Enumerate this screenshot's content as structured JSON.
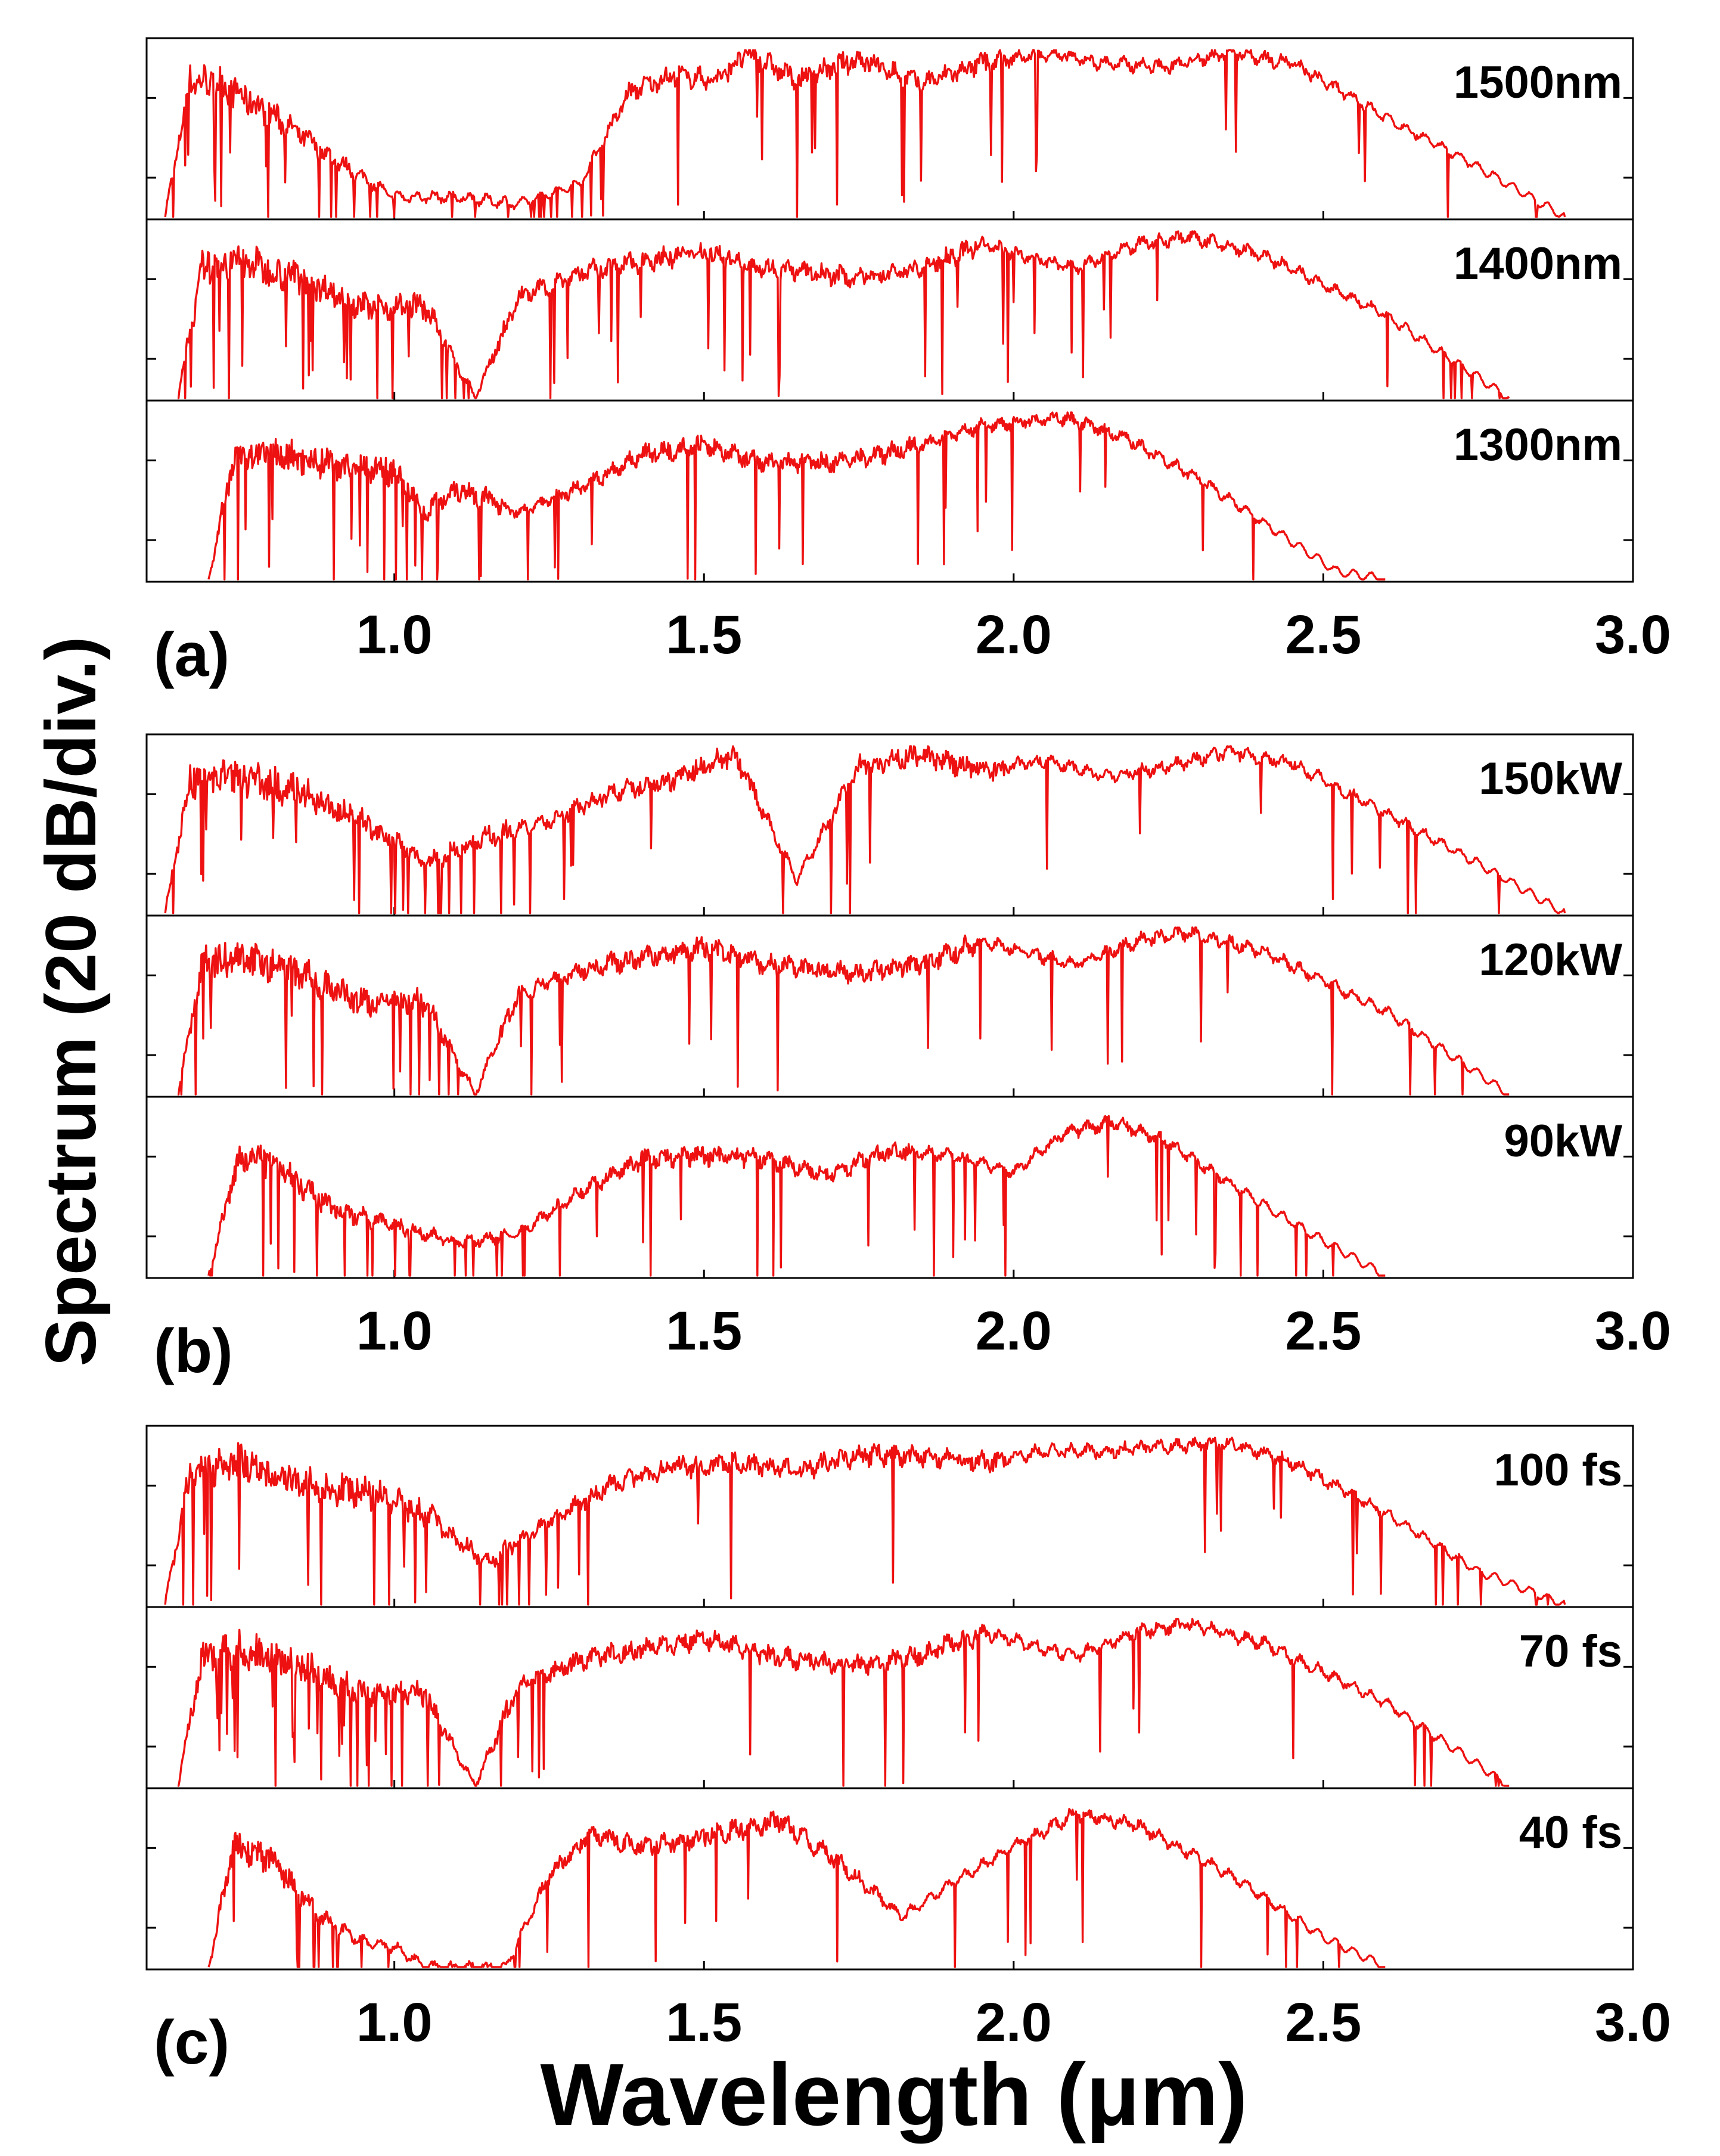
{
  "colors": {
    "trace": "#ee1111",
    "axis": "#000000",
    "background": "#ffffff"
  },
  "chart_data": {
    "type": "line",
    "xlabel": "Wavelength (μm)",
    "ylabel": "Spectrum (20 dB/div.)",
    "x_ticks": [
      "1.0",
      "1.5",
      "2.0",
      "2.5",
      "3.0"
    ],
    "xlim": [
      0.6,
      3.0
    ],
    "y_scale": "log (20 dB/div.)",
    "groups": [
      {
        "letter": "(a)",
        "panels": [
          {
            "label": "1500nm",
            "range": [
              0.63,
              2.89
            ],
            "anchors": [
              [
                0.63,
                0.0
              ],
              [
                0.67,
                0.82
              ],
              [
                0.72,
                0.8
              ],
              [
                0.8,
                0.62
              ],
              [
                0.9,
                0.35
              ],
              [
                1.0,
                0.12
              ],
              [
                1.1,
                0.12
              ],
              [
                1.2,
                0.08
              ],
              [
                1.3,
                0.2
              ],
              [
                1.38,
                0.75
              ],
              [
                1.45,
                0.85
              ],
              [
                1.52,
                0.82
              ],
              [
                1.57,
                0.98
              ],
              [
                1.65,
                0.82
              ],
              [
                1.75,
                0.95
              ],
              [
                1.85,
                0.8
              ],
              [
                1.95,
                0.92
              ],
              [
                2.05,
                0.98
              ],
              [
                2.15,
                0.92
              ],
              [
                2.25,
                0.9
              ],
              [
                2.35,
                0.99
              ],
              [
                2.45,
                0.92
              ],
              [
                2.6,
                0.6
              ],
              [
                2.75,
                0.3
              ],
              [
                2.89,
                0.0
              ]
            ]
          },
          {
            "label": "1400nm",
            "range": [
              0.65,
              2.8
            ],
            "anchors": [
              [
                0.65,
                0.0
              ],
              [
                0.69,
                0.78
              ],
              [
                0.75,
                0.82
              ],
              [
                0.85,
                0.72
              ],
              [
                0.95,
                0.55
              ],
              [
                1.05,
                0.55
              ],
              [
                1.13,
                0.0
              ],
              [
                1.2,
                0.6
              ],
              [
                1.3,
                0.75
              ],
              [
                1.4,
                0.82
              ],
              [
                1.5,
                0.88
              ],
              [
                1.6,
                0.78
              ],
              [
                1.75,
                0.72
              ],
              [
                1.85,
                0.78
              ],
              [
                1.95,
                0.92
              ],
              [
                2.05,
                0.82
              ],
              [
                2.1,
                0.78
              ],
              [
                2.2,
                0.92
              ],
              [
                2.28,
                0.97
              ],
              [
                2.4,
                0.86
              ],
              [
                2.6,
                0.5
              ],
              [
                2.7,
                0.25
              ],
              [
                2.8,
                0.0
              ]
            ]
          },
          {
            "label": "1300nm",
            "range": [
              0.7,
              2.6
            ],
            "anchors": [
              [
                0.7,
                0.0
              ],
              [
                0.74,
                0.72
              ],
              [
                0.8,
                0.75
              ],
              [
                0.9,
                0.7
              ],
              [
                1.0,
                0.65
              ],
              [
                1.05,
                0.4
              ],
              [
                1.1,
                0.55
              ],
              [
                1.2,
                0.4
              ],
              [
                1.3,
                0.55
              ],
              [
                1.4,
                0.75
              ],
              [
                1.5,
                0.8
              ],
              [
                1.6,
                0.7
              ],
              [
                1.72,
                0.7
              ],
              [
                1.85,
                0.8
              ],
              [
                1.95,
                0.92
              ],
              [
                2.08,
                0.97
              ],
              [
                2.18,
                0.85
              ],
              [
                2.3,
                0.6
              ],
              [
                2.42,
                0.3
              ],
              [
                2.52,
                0.05
              ],
              [
                2.6,
                0.0
              ]
            ]
          }
        ]
      },
      {
        "letter": "(b)",
        "panels": [
          {
            "label": "150kW",
            "range": [
              0.63,
              2.89
            ],
            "anchors": [
              [
                0.63,
                0.0
              ],
              [
                0.67,
                0.8
              ],
              [
                0.75,
                0.82
              ],
              [
                0.85,
                0.72
              ],
              [
                0.95,
                0.55
              ],
              [
                1.05,
                0.3
              ],
              [
                1.15,
                0.45
              ],
              [
                1.25,
                0.55
              ],
              [
                1.35,
                0.72
              ],
              [
                1.45,
                0.8
              ],
              [
                1.55,
                0.95
              ],
              [
                1.65,
                0.2
              ],
              [
                1.75,
                0.88
              ],
              [
                1.85,
                0.95
              ],
              [
                1.95,
                0.85
              ],
              [
                2.05,
                0.92
              ],
              [
                2.15,
                0.82
              ],
              [
                2.25,
                0.88
              ],
              [
                2.35,
                0.97
              ],
              [
                2.45,
                0.9
              ],
              [
                2.6,
                0.6
              ],
              [
                2.75,
                0.3
              ],
              [
                2.89,
                0.0
              ]
            ]
          },
          {
            "label": "120kW",
            "range": [
              0.65,
              2.8
            ],
            "anchors": [
              [
                0.65,
                0.0
              ],
              [
                0.69,
                0.78
              ],
              [
                0.75,
                0.82
              ],
              [
                0.85,
                0.72
              ],
              [
                0.95,
                0.55
              ],
              [
                1.05,
                0.55
              ],
              [
                1.13,
                0.0
              ],
              [
                1.2,
                0.6
              ],
              [
                1.3,
                0.75
              ],
              [
                1.4,
                0.82
              ],
              [
                1.5,
                0.88
              ],
              [
                1.6,
                0.78
              ],
              [
                1.75,
                0.72
              ],
              [
                1.85,
                0.78
              ],
              [
                1.95,
                0.92
              ],
              [
                2.05,
                0.82
              ],
              [
                2.1,
                0.78
              ],
              [
                2.2,
                0.92
              ],
              [
                2.28,
                0.97
              ],
              [
                2.4,
                0.86
              ],
              [
                2.6,
                0.5
              ],
              [
                2.7,
                0.25
              ],
              [
                2.8,
                0.0
              ]
            ]
          },
          {
            "label": "90kW",
            "range": [
              0.7,
              2.6
            ],
            "anchors": [
              [
                0.7,
                0.0
              ],
              [
                0.75,
                0.72
              ],
              [
                0.8,
                0.68
              ],
              [
                0.9,
                0.4
              ],
              [
                1.0,
                0.3
              ],
              [
                1.1,
                0.2
              ],
              [
                1.2,
                0.25
              ],
              [
                1.3,
                0.5
              ],
              [
                1.4,
                0.7
              ],
              [
                1.5,
                0.72
              ],
              [
                1.6,
                0.7
              ],
              [
                1.7,
                0.6
              ],
              [
                1.8,
                0.75
              ],
              [
                1.9,
                0.72
              ],
              [
                2.0,
                0.62
              ],
              [
                2.08,
                0.85
              ],
              [
                2.16,
                0.92
              ],
              [
                2.25,
                0.8
              ],
              [
                2.35,
                0.55
              ],
              [
                2.48,
                0.25
              ],
              [
                2.6,
                0.0
              ]
            ]
          }
        ]
      },
      {
        "letter": "(c)",
        "panels": [
          {
            "label": "100 fs",
            "range": [
              0.63,
              2.89
            ],
            "anchors": [
              [
                0.63,
                0.0
              ],
              [
                0.67,
                0.78
              ],
              [
                0.75,
                0.85
              ],
              [
                0.85,
                0.72
              ],
              [
                0.95,
                0.68
              ],
              [
                1.05,
                0.55
              ],
              [
                1.15,
                0.25
              ],
              [
                1.25,
                0.5
              ],
              [
                1.35,
                0.72
              ],
              [
                1.45,
                0.82
              ],
              [
                1.55,
                0.85
              ],
              [
                1.65,
                0.8
              ],
              [
                1.75,
                0.9
              ],
              [
                1.85,
                0.88
              ],
              [
                1.95,
                0.85
              ],
              [
                2.05,
                0.92
              ],
              [
                2.15,
                0.92
              ],
              [
                2.25,
                0.95
              ],
              [
                2.35,
                0.97
              ],
              [
                2.45,
                0.85
              ],
              [
                2.6,
                0.55
              ],
              [
                2.75,
                0.2
              ],
              [
                2.89,
                0.0
              ]
            ]
          },
          {
            "label": "70 fs",
            "range": [
              0.65,
              2.8
            ],
            "anchors": [
              [
                0.65,
                0.0
              ],
              [
                0.69,
                0.78
              ],
              [
                0.75,
                0.82
              ],
              [
                0.85,
                0.72
              ],
              [
                0.95,
                0.55
              ],
              [
                1.05,
                0.55
              ],
              [
                1.13,
                0.0
              ],
              [
                1.2,
                0.6
              ],
              [
                1.3,
                0.75
              ],
              [
                1.4,
                0.82
              ],
              [
                1.5,
                0.88
              ],
              [
                1.6,
                0.78
              ],
              [
                1.75,
                0.72
              ],
              [
                1.85,
                0.78
              ],
              [
                1.95,
                0.92
              ],
              [
                2.05,
                0.82
              ],
              [
                2.1,
                0.78
              ],
              [
                2.2,
                0.92
              ],
              [
                2.28,
                0.97
              ],
              [
                2.4,
                0.86
              ],
              [
                2.6,
                0.5
              ],
              [
                2.7,
                0.25
              ],
              [
                2.8,
                0.0
              ]
            ]
          },
          {
            "label": "40 fs",
            "range": [
              0.7,
              2.6
            ],
            "anchors": [
              [
                0.7,
                0.0
              ],
              [
                0.74,
                0.72
              ],
              [
                0.8,
                0.65
              ],
              [
                0.88,
                0.3
              ],
              [
                0.95,
                0.15
              ],
              [
                1.0,
                0.12
              ],
              [
                1.05,
                0.0
              ],
              [
                1.12,
                0.0
              ],
              [
                1.18,
                0.0
              ],
              [
                1.25,
                0.55
              ],
              [
                1.32,
                0.8
              ],
              [
                1.4,
                0.72
              ],
              [
                1.5,
                0.78
              ],
              [
                1.62,
                0.88
              ],
              [
                1.72,
                0.62
              ],
              [
                1.82,
                0.3
              ],
              [
                1.9,
                0.5
              ],
              [
                2.0,
                0.72
              ],
              [
                2.1,
                0.92
              ],
              [
                2.2,
                0.85
              ],
              [
                2.35,
                0.55
              ],
              [
                2.5,
                0.18
              ],
              [
                2.6,
                0.0
              ]
            ]
          }
        ]
      }
    ]
  }
}
